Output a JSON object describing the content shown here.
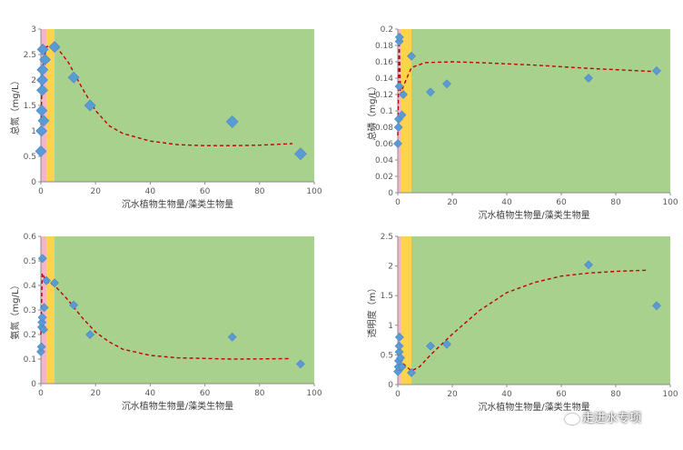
{
  "chart_data": [
    {
      "type": "scatter",
      "xlabel": "沉水植物生物量/藻类生物量",
      "ylabel": "总氮（mg/L）",
      "xlim": [
        0,
        100
      ],
      "ylim": [
        0,
        3
      ],
      "xticks": [
        "0",
        "20",
        "40",
        "60",
        "80",
        "100"
      ],
      "yticks": [
        "0",
        "0.5",
        "1",
        "1.5",
        "2",
        "2.5",
        "3"
      ],
      "grid": false,
      "legend": "none",
      "series": [
        {
          "points": [
            [
              0,
              0.6
            ],
            [
              0.2,
              1.0
            ],
            [
              0.3,
              1.4
            ],
            [
              0.5,
              1.8
            ],
            [
              0.5,
              2.0
            ],
            [
              0.6,
              2.2
            ],
            [
              0.7,
              2.6
            ],
            [
              1,
              1.2
            ],
            [
              1.5,
              2.4
            ],
            [
              5,
              2.65
            ],
            [
              12,
              2.05
            ],
            [
              18,
              1.5
            ],
            [
              70,
              1.18
            ],
            [
              95,
              0.55
            ]
          ],
          "trend": [
            [
              0,
              1.0
            ],
            [
              0.5,
              2.2
            ],
            [
              2,
              2.65
            ],
            [
              5,
              2.7
            ],
            [
              10,
              2.35
            ],
            [
              15,
              1.85
            ],
            [
              20,
              1.4
            ],
            [
              25,
              1.1
            ],
            [
              30,
              0.95
            ],
            [
              40,
              0.8
            ],
            [
              50,
              0.73
            ],
            [
              60,
              0.71
            ],
            [
              70,
              0.71
            ],
            [
              80,
              0.72
            ],
            [
              92,
              0.75
            ]
          ]
        }
      ],
      "zones": [
        {
          "from": 0,
          "to": 2,
          "color": "#F4B6C2"
        },
        {
          "from": 2,
          "to": 5,
          "color": "#FCD34D"
        },
        {
          "from": 5,
          "to": 100,
          "color": "#A9D18E"
        }
      ]
    },
    {
      "type": "scatter",
      "xlabel": "沉水植物生物量/藻类生物量",
      "ylabel": "总磷（mg/L）",
      "xlim": [
        0,
        100
      ],
      "ylim": [
        0,
        0.2
      ],
      "xticks": [
        "0",
        "20",
        "40",
        "60",
        "80",
        "100"
      ],
      "yticks": [
        "0",
        "0.02",
        "0.04",
        "0.06",
        "0.08",
        "0.1",
        "0.12",
        "0.14",
        "0.16",
        "0.18",
        "0.2"
      ],
      "grid": false,
      "legend": "none",
      "series": [
        {
          "points": [
            [
              0,
              0.06
            ],
            [
              0.2,
              0.08
            ],
            [
              0.3,
              0.09
            ],
            [
              0.5,
              0.13
            ],
            [
              0.5,
              0.185
            ],
            [
              0.6,
              0.19
            ],
            [
              1.5,
              0.095
            ],
            [
              2,
              0.12
            ],
            [
              5,
              0.167
            ],
            [
              12,
              0.123
            ],
            [
              18,
              0.133
            ],
            [
              70,
              0.14
            ],
            [
              95,
              0.149
            ]
          ],
          "trend": [
            [
              0,
              0.07
            ],
            [
              0.5,
              0.185
            ],
            [
              1,
              0.12
            ],
            [
              2,
              0.13
            ],
            [
              5,
              0.153
            ],
            [
              10,
              0.159
            ],
            [
              20,
              0.16
            ],
            [
              30,
              0.159
            ],
            [
              50,
              0.156
            ],
            [
              70,
              0.152
            ],
            [
              95,
              0.148
            ]
          ]
        }
      ],
      "zones": [
        {
          "from": 0,
          "to": 1,
          "color": "#F4B6C2"
        },
        {
          "from": 1,
          "to": 5,
          "color": "#FCD34D"
        },
        {
          "from": 5,
          "to": 100,
          "color": "#A9D18E"
        }
      ]
    },
    {
      "type": "scatter",
      "xlabel": "沉水植物生物量/藻类生物量",
      "ylabel": "氨氮（mg/L）",
      "xlim": [
        0,
        100
      ],
      "ylim": [
        0,
        0.6
      ],
      "xticks": [
        "0",
        "20",
        "40",
        "60",
        "80",
        "100"
      ],
      "yticks": [
        "0",
        "0.1",
        "0.2",
        "0.3",
        "0.4",
        "0.5",
        "0.6"
      ],
      "grid": false,
      "legend": "none",
      "series": [
        {
          "points": [
            [
              0,
              0.13
            ],
            [
              0.2,
              0.15
            ],
            [
              0.3,
              0.23
            ],
            [
              0.4,
              0.25
            ],
            [
              0.5,
              0.27
            ],
            [
              0.6,
              0.51
            ],
            [
              1,
              0.22
            ],
            [
              1.2,
              0.31
            ],
            [
              2,
              0.42
            ],
            [
              5,
              0.41
            ],
            [
              12,
              0.32
            ],
            [
              18,
              0.2
            ],
            [
              70,
              0.19
            ],
            [
              95,
              0.08
            ]
          ],
          "trend": [
            [
              0,
              0.2
            ],
            [
              0.5,
              0.45
            ],
            [
              2,
              0.415
            ],
            [
              5,
              0.4
            ],
            [
              10,
              0.34
            ],
            [
              15,
              0.27
            ],
            [
              20,
              0.21
            ],
            [
              25,
              0.17
            ],
            [
              30,
              0.14
            ],
            [
              40,
              0.115
            ],
            [
              50,
              0.105
            ],
            [
              70,
              0.1
            ],
            [
              91,
              0.102
            ]
          ]
        }
      ],
      "zones": [
        {
          "from": 0,
          "to": 2,
          "color": "#F4B6C2"
        },
        {
          "from": 2,
          "to": 5,
          "color": "#FCD34D"
        },
        {
          "from": 5,
          "to": 100,
          "color": "#A9D18E"
        }
      ]
    },
    {
      "type": "scatter",
      "xlabel": "沉水植物生物量/藻类生物量",
      "ylabel": "透明度（m）",
      "xlim": [
        0,
        100
      ],
      "ylim": [
        0,
        2.5
      ],
      "xticks": [
        "0",
        "20",
        "40",
        "60",
        "80",
        "100"
      ],
      "yticks": [
        "0",
        "0.5",
        "1",
        "1.5",
        "2",
        "2.5"
      ],
      "grid": false,
      "legend": "none",
      "series": [
        {
          "points": [
            [
              0,
              0.22
            ],
            [
              0.2,
              0.3
            ],
            [
              0.3,
              0.4
            ],
            [
              0.5,
              0.55
            ],
            [
              0.5,
              0.65
            ],
            [
              0.6,
              0.8
            ],
            [
              1,
              0.45
            ],
            [
              1.5,
              0.3
            ],
            [
              5,
              0.2
            ],
            [
              12,
              0.65
            ],
            [
              18,
              0.68
            ],
            [
              70,
              2.02
            ],
            [
              95,
              1.33
            ]
          ],
          "trend": [
            [
              0,
              0.55
            ],
            [
              2,
              0.35
            ],
            [
              5,
              0.23
            ],
            [
              8,
              0.3
            ],
            [
              12,
              0.5
            ],
            [
              20,
              0.85
            ],
            [
              30,
              1.25
            ],
            [
              40,
              1.55
            ],
            [
              50,
              1.72
            ],
            [
              60,
              1.83
            ],
            [
              70,
              1.88
            ],
            [
              80,
              1.91
            ],
            [
              92,
              1.93
            ]
          ]
        }
      ],
      "zones": [
        {
          "from": 0,
          "to": 1.2,
          "color": "#F4B6C2"
        },
        {
          "from": 1.2,
          "to": 5,
          "color": "#FCD34D"
        },
        {
          "from": 5,
          "to": 100,
          "color": "#A9D18E"
        }
      ]
    }
  ],
  "style": {
    "marker_color": "#5B9BD5",
    "trend_color": "#C00000",
    "axis_color": "#8C8C8C",
    "background": "#FFFFFF"
  },
  "watermark": {
    "text": "走进水专项",
    "icon": "wechat-icon"
  }
}
